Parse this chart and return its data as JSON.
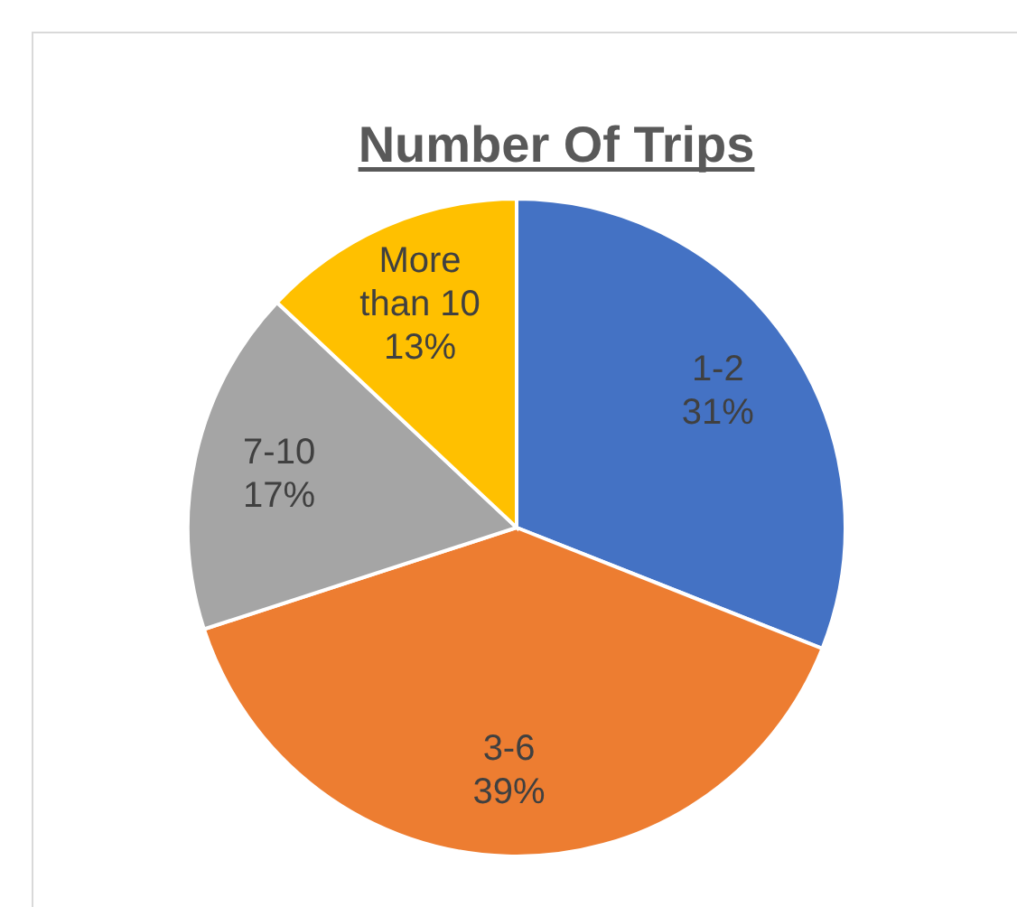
{
  "chart_data": {
    "type": "pie",
    "title": "Number Of Trips",
    "categories": [
      "1-2",
      "3-6",
      "7-10",
      "More than 10"
    ],
    "values": [
      31,
      39,
      17,
      13
    ],
    "value_labels": [
      "31%",
      "39%",
      "17%",
      "13%"
    ],
    "colors": [
      "#4472c4",
      "#ed7d31",
      "#a5a5a5",
      "#ffc000"
    ]
  }
}
